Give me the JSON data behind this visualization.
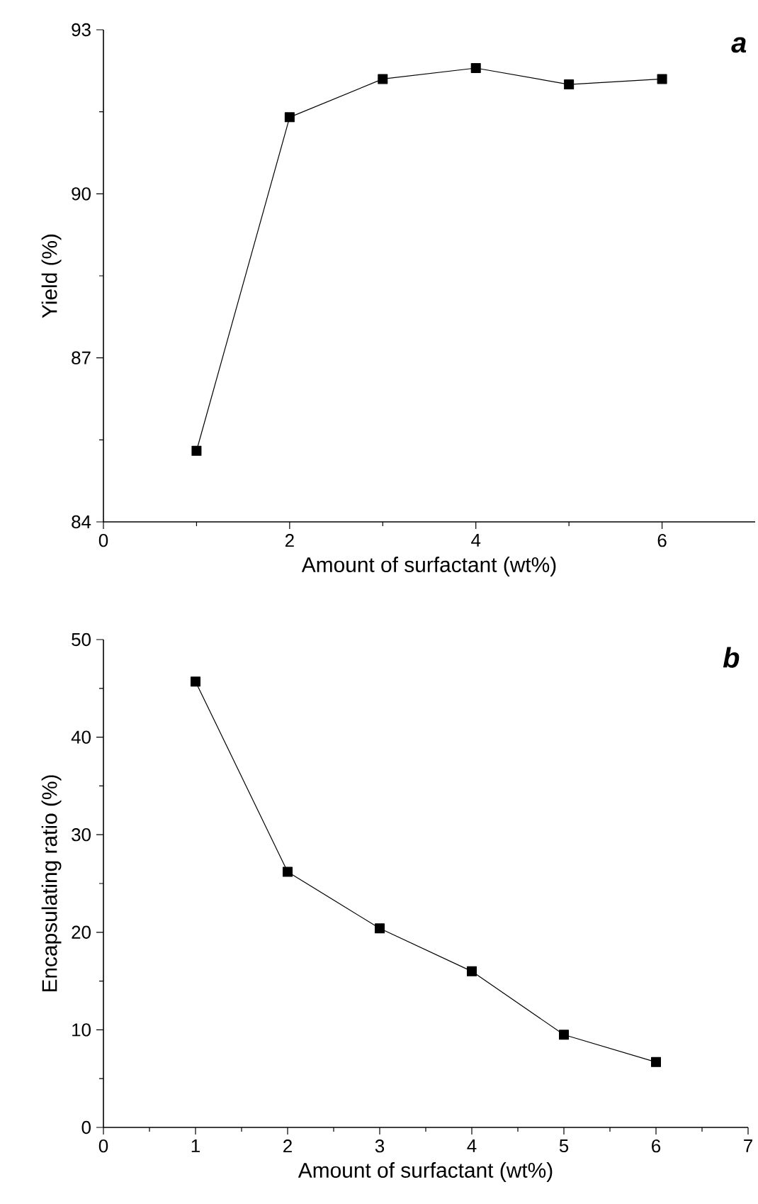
{
  "chart_data": [
    {
      "type": "line",
      "xlabel": "Amount of surfactant (wt%)",
      "ylabel": "Yield (%)",
      "x": [
        1,
        2,
        3,
        4,
        5,
        6
      ],
      "series": [
        {
          "color": "#000000",
          "values": [
            85.3,
            91.4,
            92.1,
            92.3,
            92.0,
            92.1
          ]
        }
      ],
      "xlim": [
        0,
        7
      ],
      "xticks": [
        0,
        2,
        4,
        6
      ],
      "ylim": [
        84,
        93
      ],
      "yticks": [
        84,
        87,
        90,
        93
      ],
      "marker": "square",
      "line_style": "solid",
      "annotations": [
        "a"
      ]
    },
    {
      "type": "line",
      "xlabel": "Amount of surfactant (wt%)",
      "ylabel": "Encapsulating ratio (%)",
      "x": [
        1,
        2,
        3,
        4,
        5,
        6
      ],
      "series": [
        {
          "color": "#000000",
          "values": [
            45.7,
            26.2,
            20.4,
            16.0,
            9.5,
            6.7
          ]
        }
      ],
      "xlim": [
        0,
        7
      ],
      "xticks": [
        0,
        1,
        2,
        3,
        4,
        5,
        6,
        7
      ],
      "ylim": [
        0,
        50
      ],
      "yticks": [
        0,
        10,
        20,
        30,
        40,
        50
      ],
      "marker": "square",
      "line_style": "solid",
      "annotations": [
        "b"
      ]
    }
  ]
}
